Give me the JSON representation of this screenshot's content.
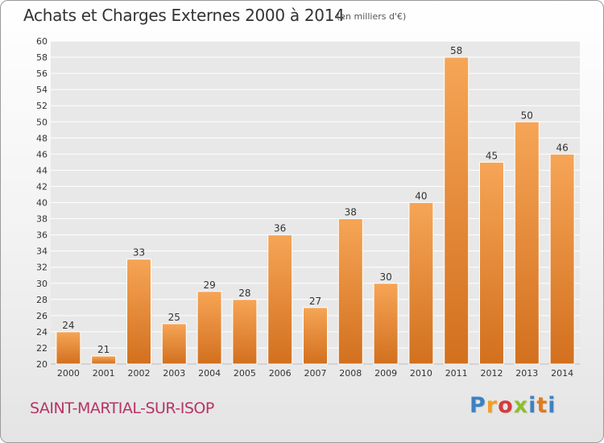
{
  "header": {
    "title": "Achats et Charges Externes 2000 à 2014",
    "subtitle": "(en milliers d'€)"
  },
  "footer": {
    "commune": "SAINT-MARTIAL-SUR-ISOP",
    "logo": "Proxiti",
    "logo_colors": [
      "#3b82c4",
      "#f0a020",
      "#d63a3a",
      "#8bbf2e",
      "#3b82c4",
      "#e07a1a",
      "#3b82c4"
    ]
  },
  "colors": {
    "bar_top": "#f6a556",
    "bar_bottom": "#d2701e",
    "plot_bg": "#e8e8e8",
    "grid": "#ffffff",
    "text": "#333333"
  },
  "chart_data": {
    "type": "bar",
    "title": "Achats et Charges Externes 2000 à 2014",
    "subtitle": "(en milliers d'€)",
    "xlabel": "",
    "ylabel": "",
    "categories": [
      "2000",
      "2001",
      "2002",
      "2003",
      "2004",
      "2005",
      "2006",
      "2007",
      "2008",
      "2009",
      "2010",
      "2011",
      "2012",
      "2013",
      "2014"
    ],
    "values": [
      24,
      21,
      33,
      25,
      29,
      28,
      36,
      27,
      38,
      30,
      40,
      58,
      45,
      50,
      46
    ],
    "ylim": [
      20,
      60
    ],
    "yticks": [
      20,
      22,
      24,
      26,
      28,
      30,
      32,
      34,
      36,
      38,
      40,
      42,
      44,
      46,
      48,
      50,
      52,
      54,
      56,
      58,
      60
    ],
    "grid": true,
    "data_labels": true
  }
}
